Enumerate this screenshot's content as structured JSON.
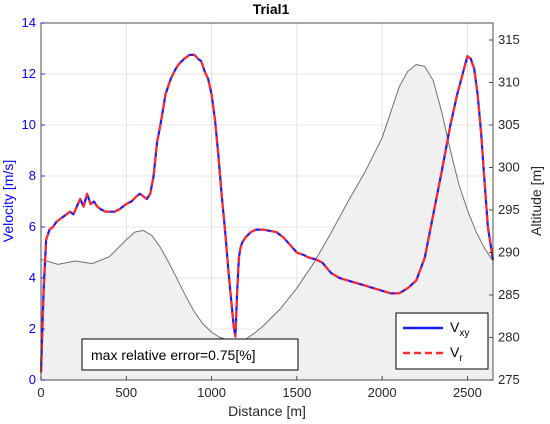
{
  "chart_data": {
    "type": "line",
    "title": "Trial1",
    "xlabel": "Distance [m]",
    "ylabel_left": "Velocity [m/s]",
    "ylabel_right": "Altitude [m]",
    "xlim": [
      0,
      2650
    ],
    "ylim_left": [
      0,
      14
    ],
    "ylim_right": [
      275,
      317
    ],
    "xticks": [
      0,
      500,
      1000,
      1500,
      2000,
      2500
    ],
    "yticks_left": [
      0,
      2,
      4,
      6,
      8,
      10,
      12,
      14
    ],
    "yticks_right": [
      275,
      280,
      285,
      290,
      295,
      300,
      305,
      310,
      315
    ],
    "grid": true,
    "annotation": "max relative error=0.75[%]",
    "legend_placement": "bottom-right",
    "colors": {
      "vxy": "#1a1aff",
      "vr": "#ff2a2a",
      "altitude_line": "#707070",
      "altitude_fill": "#f0f0f0",
      "left_axis": "#0000ff"
    },
    "legend": [
      {
        "key": "vxy",
        "base": "V",
        "sub": "xy"
      },
      {
        "key": "vr",
        "base": "V",
        "sub": "r"
      }
    ],
    "series": [
      {
        "key": "vxy",
        "axis": "left",
        "x": [
          0,
          15,
          30,
          50,
          70,
          90,
          110,
          130,
          150,
          170,
          190,
          210,
          230,
          250,
          270,
          290,
          310,
          330,
          350,
          380,
          400,
          430,
          460,
          500,
          530,
          560,
          580,
          600,
          620,
          640,
          660,
          680,
          700,
          730,
          760,
          790,
          810,
          840,
          870,
          900,
          920,
          940,
          960,
          980,
          1000,
          1020,
          1040,
          1060,
          1080,
          1100,
          1120,
          1130,
          1140,
          1150,
          1160,
          1170,
          1180,
          1200,
          1230,
          1260,
          1300,
          1340,
          1380,
          1420,
          1460,
          1500,
          1540,
          1570,
          1600,
          1620,
          1650,
          1700,
          1750,
          1800,
          1850,
          1900,
          1950,
          2000,
          2050,
          2100,
          2150,
          2200,
          2250,
          2300,
          2350,
          2400,
          2440,
          2480,
          2500,
          2520,
          2540,
          2560,
          2580,
          2600,
          2620,
          2650
        ],
        "y": [
          0.3,
          3.5,
          5.5,
          5.9,
          6.0,
          6.2,
          6.3,
          6.4,
          6.5,
          6.6,
          6.5,
          6.8,
          7.1,
          6.8,
          7.3,
          6.9,
          7.0,
          6.8,
          6.7,
          6.6,
          6.6,
          6.6,
          6.7,
          6.9,
          7.0,
          7.2,
          7.3,
          7.2,
          7.1,
          7.3,
          8.0,
          9.3,
          10.0,
          11.2,
          11.8,
          12.2,
          12.4,
          12.6,
          12.75,
          12.75,
          12.6,
          12.5,
          12.1,
          11.8,
          11.2,
          10.2,
          8.8,
          7.2,
          5.8,
          4.2,
          2.8,
          2.1,
          1.7,
          3.5,
          4.8,
          5.2,
          5.4,
          5.6,
          5.8,
          5.9,
          5.9,
          5.85,
          5.8,
          5.6,
          5.3,
          5.0,
          4.9,
          4.8,
          4.75,
          4.7,
          4.6,
          4.2,
          4.0,
          3.9,
          3.8,
          3.7,
          3.6,
          3.5,
          3.4,
          3.4,
          3.6,
          3.9,
          4.8,
          6.5,
          8.2,
          10.0,
          11.2,
          12.2,
          12.7,
          12.6,
          12.2,
          11.2,
          9.7,
          7.8,
          6.0,
          4.7
        ]
      },
      {
        "key": "vr",
        "axis": "left",
        "x": [
          0,
          15,
          30,
          50,
          70,
          90,
          110,
          130,
          150,
          170,
          190,
          210,
          230,
          250,
          270,
          290,
          310,
          330,
          350,
          380,
          400,
          430,
          460,
          500,
          530,
          560,
          580,
          600,
          620,
          640,
          660,
          680,
          700,
          730,
          760,
          790,
          810,
          840,
          870,
          900,
          920,
          940,
          960,
          980,
          1000,
          1020,
          1040,
          1060,
          1080,
          1100,
          1120,
          1130,
          1140,
          1150,
          1160,
          1170,
          1180,
          1200,
          1230,
          1260,
          1300,
          1340,
          1380,
          1420,
          1460,
          1500,
          1540,
          1570,
          1600,
          1620,
          1650,
          1700,
          1750,
          1800,
          1850,
          1900,
          1950,
          2000,
          2050,
          2100,
          2150,
          2200,
          2250,
          2300,
          2350,
          2400,
          2440,
          2480,
          2500,
          2520,
          2540,
          2560,
          2580,
          2600,
          2620,
          2650
        ],
        "y": [
          0.3,
          3.5,
          5.5,
          5.9,
          6.0,
          6.2,
          6.3,
          6.4,
          6.5,
          6.6,
          6.5,
          6.8,
          7.1,
          6.8,
          7.3,
          6.9,
          7.0,
          6.8,
          6.7,
          6.6,
          6.6,
          6.6,
          6.7,
          6.9,
          7.0,
          7.2,
          7.3,
          7.2,
          7.1,
          7.3,
          8.0,
          9.3,
          10.0,
          11.2,
          11.8,
          12.2,
          12.4,
          12.6,
          12.75,
          12.75,
          12.6,
          12.5,
          12.1,
          11.8,
          11.2,
          10.2,
          8.8,
          7.2,
          5.8,
          4.2,
          2.8,
          2.1,
          1.7,
          3.5,
          4.8,
          5.2,
          5.4,
          5.6,
          5.8,
          5.9,
          5.9,
          5.85,
          5.8,
          5.6,
          5.3,
          5.0,
          4.9,
          4.8,
          4.75,
          4.7,
          4.6,
          4.2,
          4.0,
          3.9,
          3.8,
          3.7,
          3.6,
          3.5,
          3.4,
          3.4,
          3.6,
          3.9,
          4.8,
          6.5,
          8.2,
          10.0,
          11.2,
          12.2,
          12.7,
          12.6,
          12.2,
          11.2,
          9.7,
          7.8,
          6.0,
          4.7
        ]
      },
      {
        "key": "altitude",
        "axis": "right",
        "x": [
          0,
          100,
          200,
          300,
          400,
          500,
          550,
          600,
          650,
          700,
          750,
          800,
          850,
          900,
          950,
          1000,
          1050,
          1100,
          1150,
          1200,
          1250,
          1300,
          1400,
          1500,
          1600,
          1700,
          1800,
          1900,
          2000,
          2050,
          2100,
          2150,
          2200,
          2250,
          2300,
          2350,
          2400,
          2450,
          2500,
          2550,
          2600,
          2650
        ],
        "y": [
          289.2,
          288.6,
          289.0,
          288.7,
          289.5,
          291.5,
          292.4,
          292.6,
          292.0,
          290.6,
          288.8,
          286.8,
          284.8,
          283.0,
          281.6,
          280.6,
          280.0,
          279.7,
          279.6,
          279.8,
          280.5,
          281.3,
          283.3,
          285.8,
          288.8,
          292.3,
          296.0,
          299.5,
          303.5,
          306.5,
          309.5,
          311.3,
          312.1,
          311.9,
          310.2,
          306.5,
          302.0,
          298.0,
          295.0,
          292.5,
          290.5,
          289.0
        ]
      }
    ]
  }
}
